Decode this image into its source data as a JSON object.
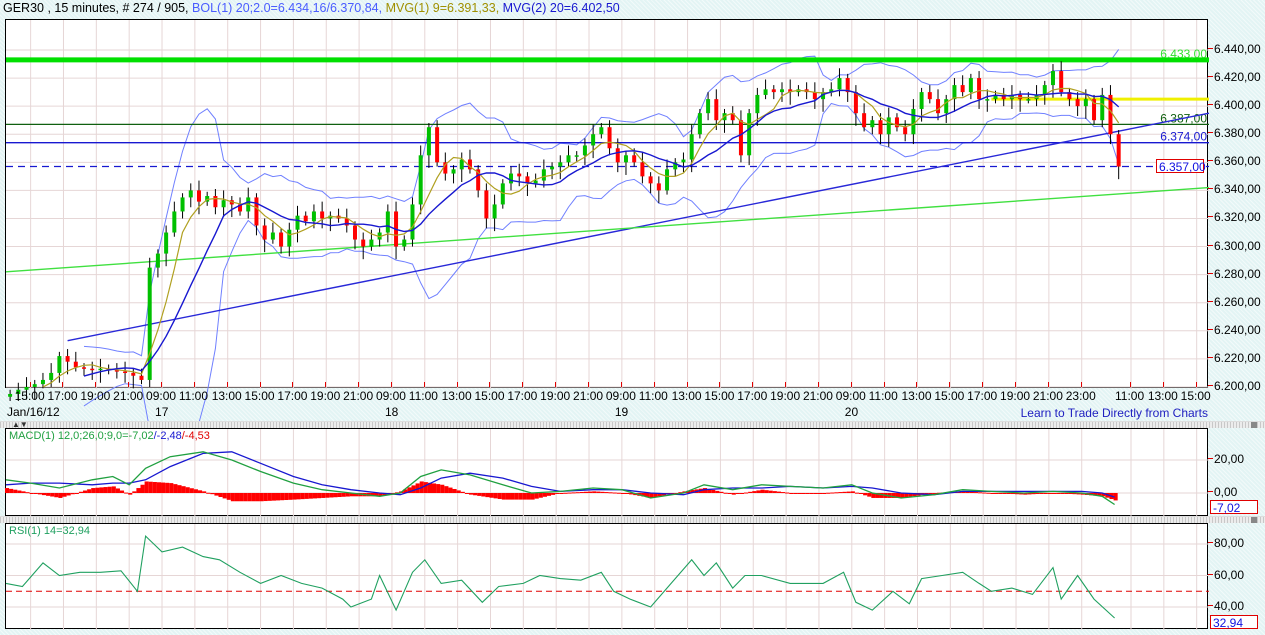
{
  "header": {
    "symbol": "GER30 , 15 minutes, # 274 / 905,",
    "bol": "BOL(1) 20;2.0=6.434,16/6.370,84,",
    "mvg1": "MVG(1) 9=6.391,33,",
    "mvg2": "MVG(2) 20=6.402,50"
  },
  "colors": {
    "up": "#00c000",
    "down": "#ff0000",
    "mvg1": "#b0a020",
    "mvg2": "#1818d0",
    "bol": "#7080ff",
    "grid": "#e6d6d6",
    "macd": "#20a040",
    "signal": "#1818d0",
    "hist": "#ff0000",
    "rsi": "#20a060"
  },
  "link": "Learn to Trade Directly from Charts",
  "chart_data": [
    {
      "type": "candlestick",
      "title": "GER30 15 minutes",
      "ylim": [
        6200,
        6440
      ],
      "yticks": [
        "6.200,00",
        "6.220,00",
        "6.240,00",
        "6.260,00",
        "6.280,00",
        "6.300,00",
        "6.320,00",
        "6.340,00",
        "6.360,00",
        "6.380,00",
        "6.400,00",
        "6.420,00",
        "6.440,00"
      ],
      "ytick_values": [
        6200,
        6220,
        6240,
        6260,
        6280,
        6300,
        6320,
        6340,
        6360,
        6380,
        6400,
        6420,
        6440
      ],
      "total_bars": 293,
      "bars_per_candle": 2,
      "closes": [
        6195,
        6198,
        6200,
        6202,
        6205,
        6210,
        6222,
        6218,
        6214,
        6213,
        6212,
        6213,
        6212,
        6211,
        6210,
        6208,
        6205,
        6285,
        6295,
        6310,
        6325,
        6335,
        6340,
        6332,
        6336,
        6328,
        6333,
        6330,
        6325,
        6335,
        6315,
        6305,
        6310,
        6300,
        6312,
        6322,
        6318,
        6325,
        6320,
        6322,
        6320,
        6315,
        6305,
        6300,
        6305,
        6310,
        6325,
        6300,
        6305,
        6330,
        6365,
        6385,
        6360,
        6352,
        6355,
        6362,
        6355,
        6340,
        6320,
        6330,
        6345,
        6352,
        6350,
        6345,
        6347,
        6355,
        6357,
        6360,
        6365,
        6365,
        6372,
        6380,
        6385,
        6370,
        6360,
        6365,
        6360,
        6350,
        6345,
        6340,
        6355,
        6360,
        6362,
        6380,
        6395,
        6405,
        6390,
        6395,
        6390,
        6365,
        6395,
        6408,
        6412,
        6410,
        6412,
        6410,
        6412,
        6410,
        6405,
        6410,
        6412,
        6420,
        6410,
        6395,
        6385,
        6390,
        6380,
        6392,
        6385,
        6380,
        6398,
        6410,
        6405,
        6395,
        6405,
        6415,
        6410,
        6420,
        6405,
        6405,
        6408,
        6405,
        6408,
        6405,
        6405,
        6408,
        6415,
        6425,
        6410,
        6405,
        6400,
        6405,
        6390,
        6408,
        6380,
        6357
      ],
      "xticks": [
        {
          "bar": 6,
          "label": "15:00"
        },
        {
          "bar": 14,
          "label": "17:00"
        },
        {
          "bar": 22,
          "label": "19:00"
        },
        {
          "bar": 30,
          "label": "21:00"
        },
        {
          "bar": 38,
          "label": "09:00"
        },
        {
          "bar": 46,
          "label": "11:00"
        },
        {
          "bar": 54,
          "label": "13:00"
        },
        {
          "bar": 62,
          "label": "15:00"
        },
        {
          "bar": 70,
          "label": "17:00"
        },
        {
          "bar": 78,
          "label": "19:00"
        },
        {
          "bar": 86,
          "label": "21:00"
        },
        {
          "bar": 94,
          "label": "09:00"
        },
        {
          "bar": 102,
          "label": "11:00"
        },
        {
          "bar": 110,
          "label": "13:00"
        },
        {
          "bar": 118,
          "label": "15:00"
        },
        {
          "bar": 126,
          "label": "17:00"
        },
        {
          "bar": 134,
          "label": "19:00"
        },
        {
          "bar": 142,
          "label": "21:00"
        },
        {
          "bar": 150,
          "label": "09:00"
        },
        {
          "bar": 158,
          "label": "11:00"
        },
        {
          "bar": 166,
          "label": "13:00"
        },
        {
          "bar": 174,
          "label": "15:00"
        },
        {
          "bar": 182,
          "label": "17:00"
        },
        {
          "bar": 190,
          "label": "19:00"
        },
        {
          "bar": 198,
          "label": "21:00"
        },
        {
          "bar": 206,
          "label": "09:00"
        },
        {
          "bar": 214,
          "label": "11:00"
        },
        {
          "bar": 222,
          "label": "13:00"
        },
        {
          "bar": 230,
          "label": "15:00"
        },
        {
          "bar": 238,
          "label": "17:00"
        },
        {
          "bar": 246,
          "label": "19:00"
        },
        {
          "bar": 254,
          "label": "21:00"
        },
        {
          "bar": 262,
          "label": "23:00"
        },
        {
          "bar": 274,
          "label": "11:00"
        },
        {
          "bar": 282,
          "label": "13:00"
        },
        {
          "bar": 290,
          "label": "15:00"
        }
      ],
      "dates": [
        {
          "bar": 0,
          "label": "Jan/16/12"
        },
        {
          "bar": 38,
          "label": "17"
        },
        {
          "bar": 94,
          "label": "18"
        },
        {
          "bar": 150,
          "label": "19"
        },
        {
          "bar": 206,
          "label": "20"
        }
      ],
      "hlines": [
        {
          "price": 6433,
          "color": "#00e000",
          "label": "6.433,00",
          "style": "thick"
        },
        {
          "price": 6387,
          "color": "#106010",
          "label": "6.387,00",
          "style": "solid"
        },
        {
          "price": 6374,
          "color": "#1818d0",
          "label": "6.374,00",
          "style": "solid"
        },
        {
          "price": 6357,
          "color": "#1818d0",
          "label": "6.357,00",
          "style": "dashed"
        }
      ],
      "yellow_line": {
        "price": 6405,
        "from_bar": 240,
        "color": "#f0f000"
      },
      "trendlines": [
        {
          "from": [
            15,
            6233
          ],
          "to": [
            293,
            6395
          ],
          "color": "#2828d8"
        },
        {
          "from": [
            0,
            6282
          ],
          "to": [
            293,
            6342
          ],
          "color": "#40e040"
        }
      ],
      "last_price_label": "6.357,00"
    },
    {
      "type": "line",
      "title": "MACD(1) 12,0;26,0;9,0",
      "label_parts": [
        "MACD(1) 12,0;26,0;9,0=-7,02",
        "/-2,48",
        "/-4,53"
      ],
      "ylim": [
        -14,
        38
      ],
      "yticks": [
        "20,00",
        "0,00"
      ],
      "ytick_values": [
        20,
        0
      ],
      "macd": [
        [
          0,
          8
        ],
        [
          6,
          6
        ],
        [
          13,
          3
        ],
        [
          21,
          8
        ],
        [
          26,
          10
        ],
        [
          30,
          5
        ],
        [
          34,
          15
        ],
        [
          40,
          22
        ],
        [
          48,
          25
        ],
        [
          55,
          20
        ],
        [
          62,
          13
        ],
        [
          70,
          6
        ],
        [
          77,
          2
        ],
        [
          84,
          0
        ],
        [
          91,
          -2
        ],
        [
          96,
          0
        ],
        [
          101,
          10
        ],
        [
          106,
          14
        ],
        [
          113,
          11
        ],
        [
          121,
          5
        ],
        [
          128,
          0
        ],
        [
          135,
          1
        ],
        [
          143,
          3
        ],
        [
          150,
          2
        ],
        [
          157,
          -3
        ],
        [
          165,
          0
        ],
        [
          170,
          5
        ],
        [
          177,
          2
        ],
        [
          184,
          5
        ],
        [
          191,
          4
        ],
        [
          199,
          3
        ],
        [
          206,
          5
        ],
        [
          211,
          0
        ],
        [
          218,
          -3
        ],
        [
          226,
          -1
        ],
        [
          233,
          2
        ],
        [
          240,
          1
        ],
        [
          248,
          0
        ],
        [
          255,
          1
        ],
        [
          262,
          0
        ],
        [
          267,
          -2
        ],
        [
          270,
          -7
        ]
      ],
      "signal": [
        [
          0,
          5
        ],
        [
          6,
          6
        ],
        [
          13,
          6
        ],
        [
          21,
          5
        ],
        [
          26,
          6
        ],
        [
          30,
          6
        ],
        [
          34,
          8
        ],
        [
          40,
          16
        ],
        [
          48,
          24
        ],
        [
          55,
          25
        ],
        [
          62,
          18
        ],
        [
          70,
          10
        ],
        [
          77,
          5
        ],
        [
          84,
          2
        ],
        [
          91,
          0
        ],
        [
          96,
          -1
        ],
        [
          101,
          3
        ],
        [
          106,
          9
        ],
        [
          113,
          12
        ],
        [
          121,
          9
        ],
        [
          128,
          4
        ],
        [
          135,
          1
        ],
        [
          143,
          2
        ],
        [
          150,
          2
        ],
        [
          157,
          0
        ],
        [
          165,
          -1
        ],
        [
          170,
          2
        ],
        [
          177,
          3
        ],
        [
          184,
          3
        ],
        [
          191,
          4
        ],
        [
          199,
          3
        ],
        [
          206,
          4
        ],
        [
          211,
          3
        ],
        [
          218,
          0
        ],
        [
          226,
          -1
        ],
        [
          233,
          1
        ],
        [
          240,
          1
        ],
        [
          248,
          1
        ],
        [
          255,
          1
        ],
        [
          262,
          1
        ],
        [
          267,
          0
        ],
        [
          270,
          -2.5
        ]
      ],
      "last_value_label": "-7,02"
    },
    {
      "type": "line",
      "title": "RSI(1) 14=32,94",
      "ylim": [
        28,
        92
      ],
      "yticks": [
        "80,00",
        "60,00",
        "40,00"
      ],
      "ytick_values": [
        80,
        60,
        40
      ],
      "reference_level": 50,
      "rsi": [
        [
          0,
          55
        ],
        [
          4,
          53
        ],
        [
          9,
          68
        ],
        [
          13,
          60
        ],
        [
          18,
          62
        ],
        [
          23,
          62
        ],
        [
          28,
          63
        ],
        [
          32,
          50
        ],
        [
          34,
          85
        ],
        [
          38,
          75
        ],
        [
          43,
          78
        ],
        [
          48,
          72
        ],
        [
          52,
          70
        ],
        [
          57,
          62
        ],
        [
          62,
          55
        ],
        [
          67,
          60
        ],
        [
          72,
          55
        ],
        [
          77,
          52
        ],
        [
          82,
          45
        ],
        [
          84,
          40
        ],
        [
          89,
          45
        ],
        [
          91,
          60
        ],
        [
          95,
          38
        ],
        [
          99,
          62
        ],
        [
          102,
          70
        ],
        [
          106,
          55
        ],
        [
          111,
          57
        ],
        [
          116,
          43
        ],
        [
          120,
          53
        ],
        [
          126,
          55
        ],
        [
          130,
          60
        ],
        [
          135,
          58
        ],
        [
          140,
          57
        ],
        [
          145,
          62
        ],
        [
          148,
          50
        ],
        [
          152,
          45
        ],
        [
          157,
          40
        ],
        [
          162,
          55
        ],
        [
          167,
          70
        ],
        [
          170,
          60
        ],
        [
          173,
          68
        ],
        [
          177,
          52
        ],
        [
          180,
          60
        ],
        [
          184,
          60
        ],
        [
          191,
          55
        ],
        [
          199,
          55
        ],
        [
          204,
          62
        ],
        [
          207,
          43
        ],
        [
          211,
          38
        ],
        [
          216,
          50
        ],
        [
          220,
          42
        ],
        [
          223,
          58
        ],
        [
          228,
          60
        ],
        [
          233,
          62
        ],
        [
          237,
          55
        ],
        [
          240,
          50
        ],
        [
          245,
          52
        ],
        [
          250,
          48
        ],
        [
          255,
          65
        ],
        [
          257,
          45
        ],
        [
          261,
          60
        ],
        [
          265,
          45
        ],
        [
          270,
          33
        ]
      ],
      "last_value_label": "32,94"
    }
  ]
}
